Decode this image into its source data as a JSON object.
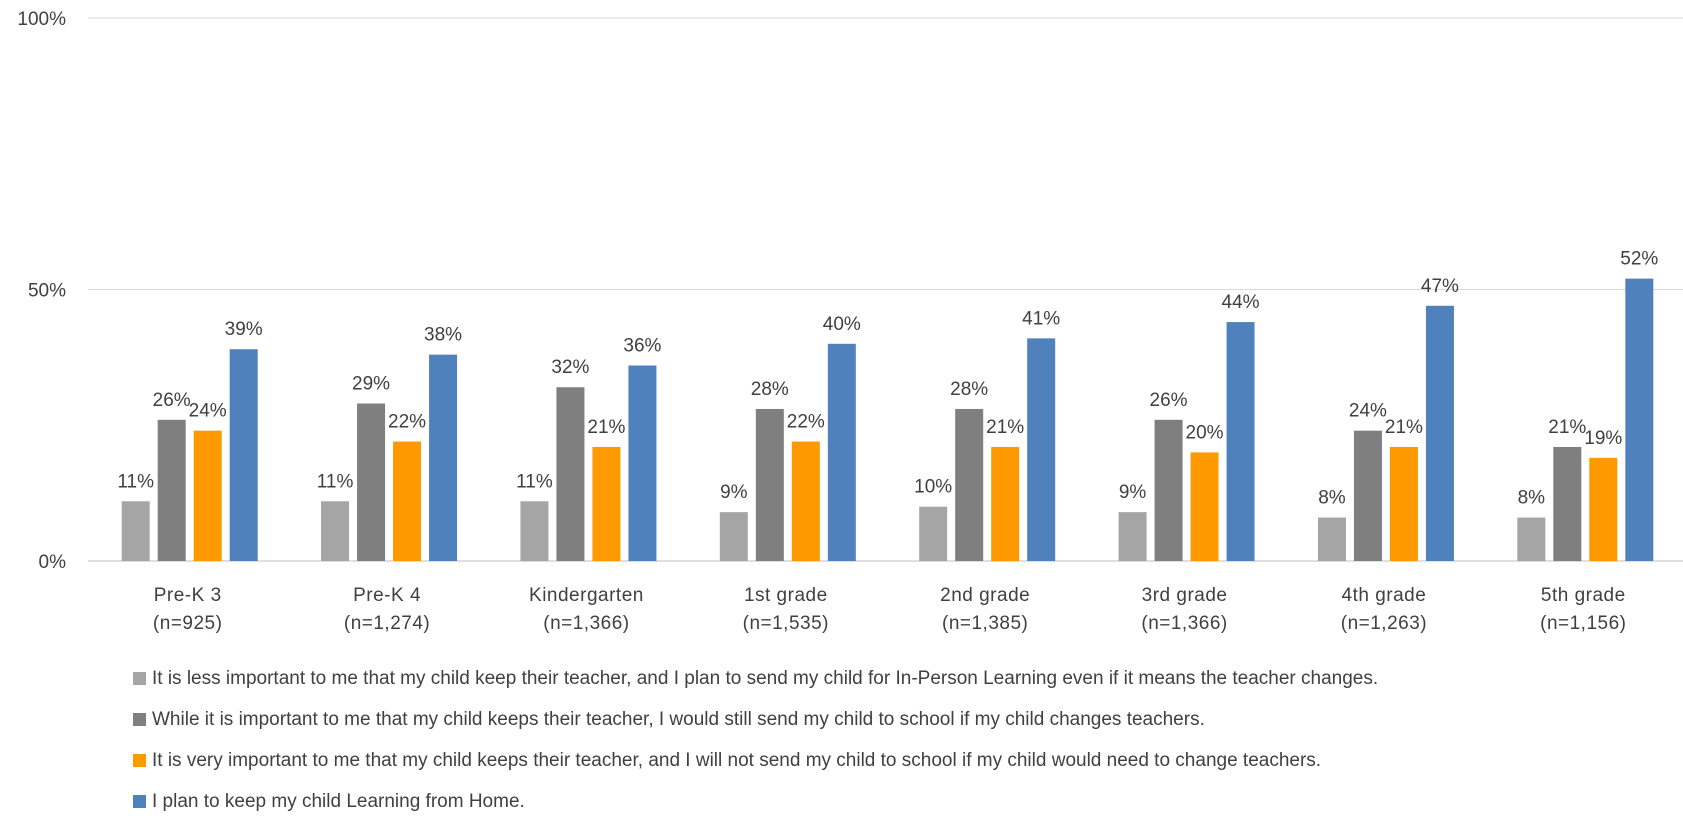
{
  "chart_data": {
    "type": "bar",
    "categories": [
      {
        "line1": "Pre-K 3",
        "line2": "(n=925)"
      },
      {
        "line1": "Pre-K 4",
        "line2": "(n=1,274)"
      },
      {
        "line1": "Kindergarten",
        "line2": "(n=1,366)"
      },
      {
        "line1": "1st grade",
        "line2": "(n=1,535)"
      },
      {
        "line1": "2nd grade",
        "line2": "(n=1,385)"
      },
      {
        "line1": "3rd grade",
        "line2": "(n=1,366)"
      },
      {
        "line1": "4th grade",
        "line2": "(n=1,263)"
      },
      {
        "line1": "5th grade",
        "line2": "(n=1,156)"
      }
    ],
    "series": [
      {
        "name": "It is less important to me that my child keep their teacher, and I plan to send my child for In-Person Learning even if it means the teacher changes.",
        "color": "#a5a5a5",
        "values": [
          11,
          11,
          11,
          9,
          10,
          9,
          8,
          8
        ]
      },
      {
        "name": "While it is important to me that my child keeps their teacher, I would still send my child to school if my child changes teachers.",
        "color": "#7f7f7f",
        "values": [
          26,
          29,
          32,
          28,
          28,
          26,
          24,
          21
        ]
      },
      {
        "name": "It is very important to me that my child keeps their teacher, and I will not send my child to school if my child would need to change teachers.",
        "color": "#ff9900",
        "values": [
          24,
          22,
          21,
          22,
          21,
          20,
          21,
          19
        ]
      },
      {
        "name": "I plan to keep my child Learning from Home.",
        "color": "#4f81bd",
        "values": [
          39,
          38,
          36,
          40,
          41,
          44,
          47,
          52
        ]
      }
    ],
    "ylim": [
      0,
      100
    ],
    "yticks": [
      "0%",
      "50%",
      "100%"
    ],
    "ytick_values": [
      0,
      50,
      100
    ],
    "value_suffix": "%",
    "grid": true,
    "legend_position": "bottom"
  }
}
